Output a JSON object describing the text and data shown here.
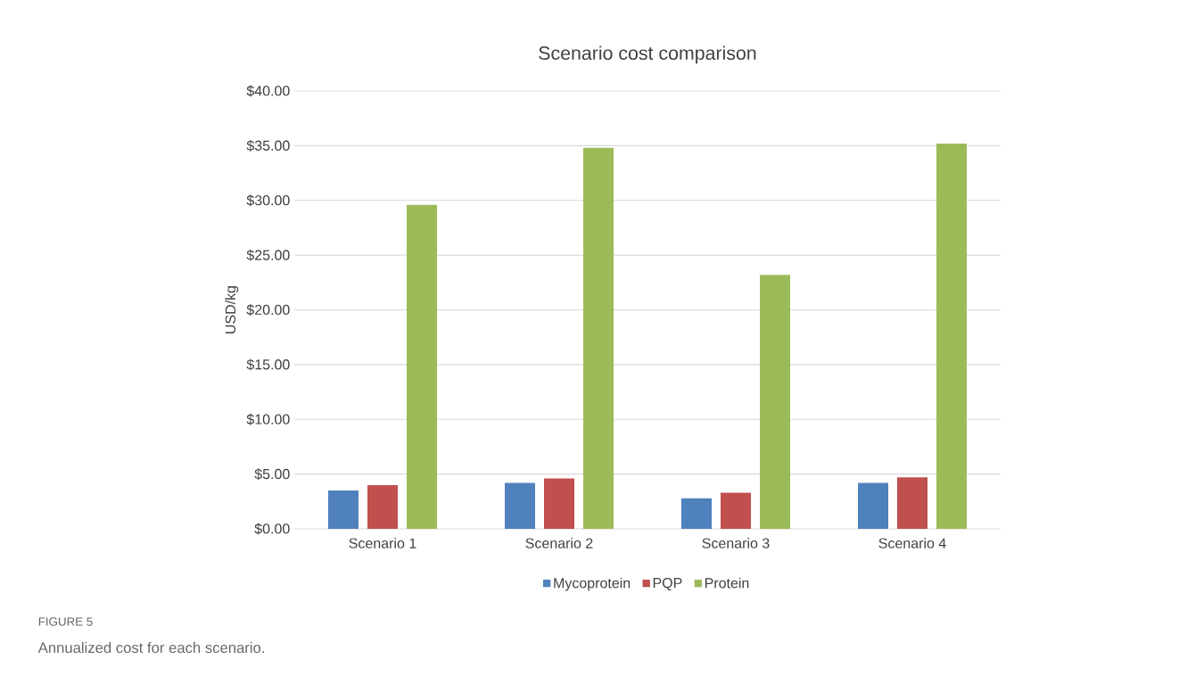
{
  "chart_data": {
    "type": "bar",
    "title": "Scenario cost comparison",
    "ylabel": "USD/kg",
    "categories": [
      "Scenario 1",
      "Scenario 2",
      "Scenario 3",
      "Scenario 4"
    ],
    "series": [
      {
        "name": "Mycoprotein",
        "color": "#4f81bd",
        "values": [
          3.5,
          4.2,
          2.8,
          4.2
        ]
      },
      {
        "name": "PQP",
        "color": "#c0504d",
        "values": [
          4.0,
          4.6,
          3.3,
          4.7
        ]
      },
      {
        "name": "Protein",
        "color": "#9bbb59",
        "values": [
          29.6,
          34.8,
          23.2,
          35.2
        ]
      }
    ],
    "ylim": [
      0,
      40
    ],
    "yticks": [
      {
        "value": 0,
        "label": "$0.00"
      },
      {
        "value": 5,
        "label": "$5.00"
      },
      {
        "value": 10,
        "label": "$10.00"
      },
      {
        "value": 15,
        "label": "$15.00"
      },
      {
        "value": 20,
        "label": "$20.00"
      },
      {
        "value": 25,
        "label": "$25.00"
      },
      {
        "value": 30,
        "label": "$30.00"
      },
      {
        "value": 35,
        "label": "$35.00"
      },
      {
        "value": 40,
        "label": "$40.00"
      }
    ],
    "grid": "y",
    "legend": "bottom",
    "annotations": [
      "FIGURE 5",
      "Annualized cost for each scenario."
    ]
  }
}
